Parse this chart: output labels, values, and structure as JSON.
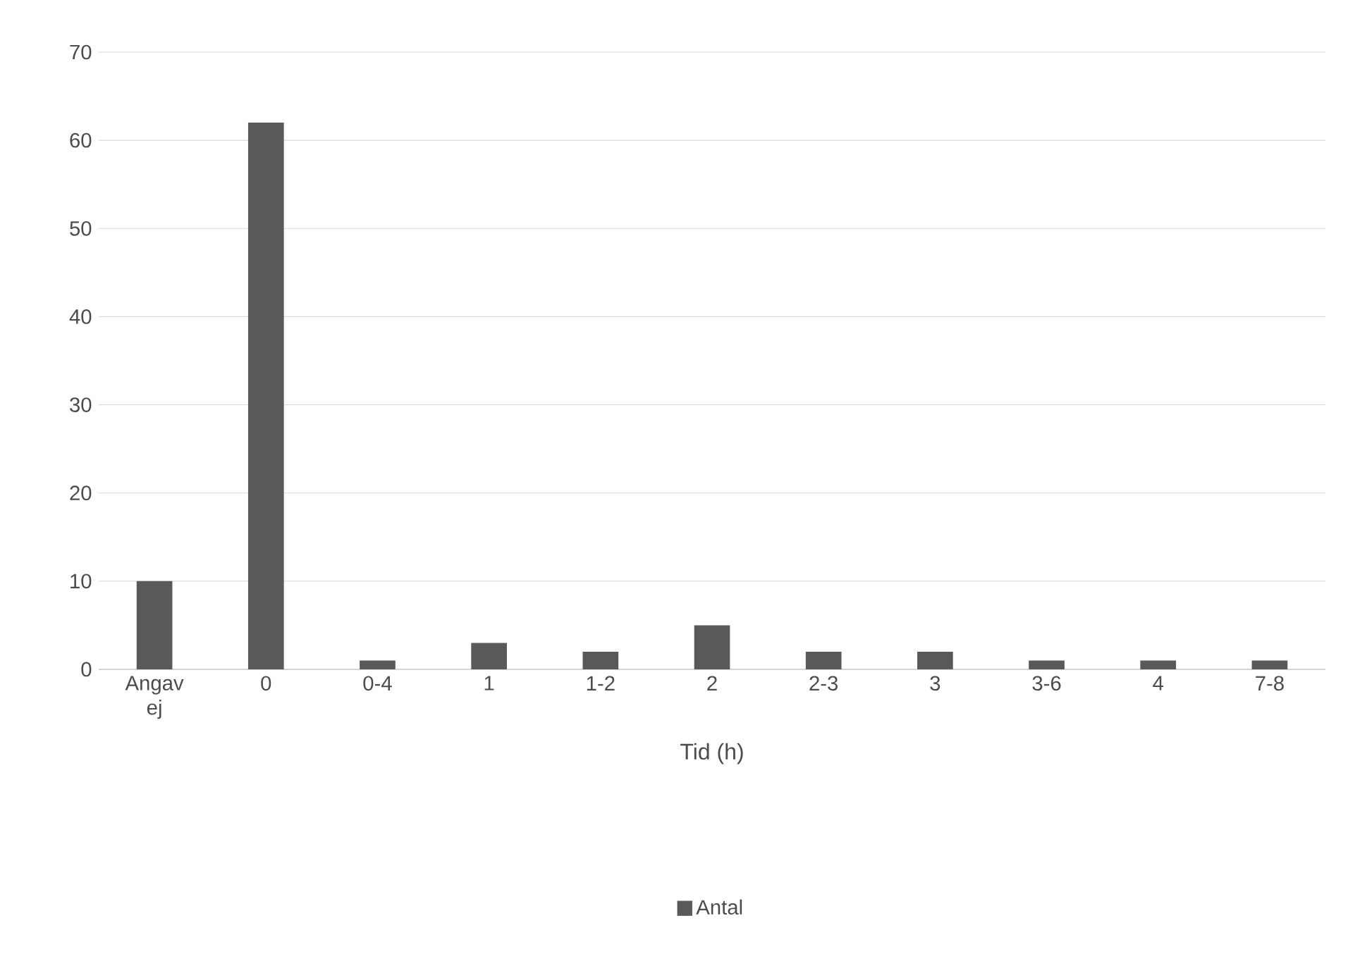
{
  "chart_data": {
    "type": "bar",
    "xlabel": "Tid (h)",
    "categories": [
      "Angav ej",
      "0",
      "0-4",
      "1",
      "1-2",
      "2",
      "2-3",
      "3",
      "3-6",
      "4",
      "7-8"
    ],
    "series": [
      {
        "name": "Antal",
        "color": "#595959",
        "values": [
          10,
          62,
          1,
          3,
          2,
          5,
          2,
          2,
          1,
          1,
          1
        ]
      }
    ],
    "ylim": [
      0,
      70
    ],
    "yticks": [
      0,
      10,
      20,
      30,
      40,
      50,
      60,
      70
    ],
    "grid": "y",
    "legend": "bottom"
  }
}
